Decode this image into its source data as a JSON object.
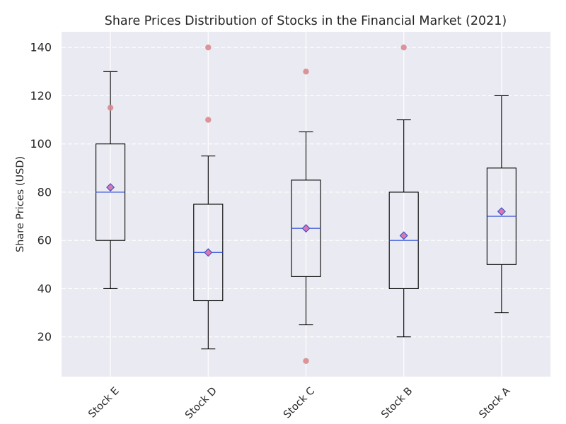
{
  "chart_data": {
    "type": "box",
    "title": "Share Prices Distribution of Stocks in the Financial Market (2021)",
    "xlabel": "",
    "ylabel": "Share Prices (USD)",
    "ylim": [
      3.5,
      146.5
    ],
    "yticks": [
      20,
      40,
      60,
      80,
      100,
      120,
      140
    ],
    "grid": true,
    "grid_style": "dashed",
    "categories": [
      "Stock E",
      "Stock D",
      "Stock C",
      "Stock B",
      "Stock A"
    ],
    "boxes": [
      {
        "whisker_low": 40,
        "q1": 60,
        "median": 80,
        "q3": 100,
        "whisker_high": 130,
        "mean": 82,
        "outliers": [
          115
        ]
      },
      {
        "whisker_low": 15,
        "q1": 35,
        "median": 55,
        "q3": 75,
        "whisker_high": 95,
        "mean": 55,
        "outliers": [
          110,
          140
        ]
      },
      {
        "whisker_low": 25,
        "q1": 45,
        "median": 65,
        "q3": 85,
        "whisker_high": 105,
        "mean": 65,
        "outliers": [
          10,
          130
        ]
      },
      {
        "whisker_low": 20,
        "q1": 40,
        "median": 60,
        "q3": 80,
        "whisker_high": 110,
        "mean": 62,
        "outliers": [
          140
        ]
      },
      {
        "whisker_low": 30,
        "q1": 50,
        "median": 70,
        "q3": 90,
        "whisker_high": 120,
        "mean": 72,
        "outliers": []
      }
    ],
    "colors": {
      "background": "#eaeaf2",
      "grid": "#ffffff",
      "box": "#000000",
      "median": "#2a4bd7",
      "mean_marker_fill": "#dd77b2",
      "mean_marker_edge": "#3a4fc7",
      "outlier": "#d98a8f"
    }
  }
}
